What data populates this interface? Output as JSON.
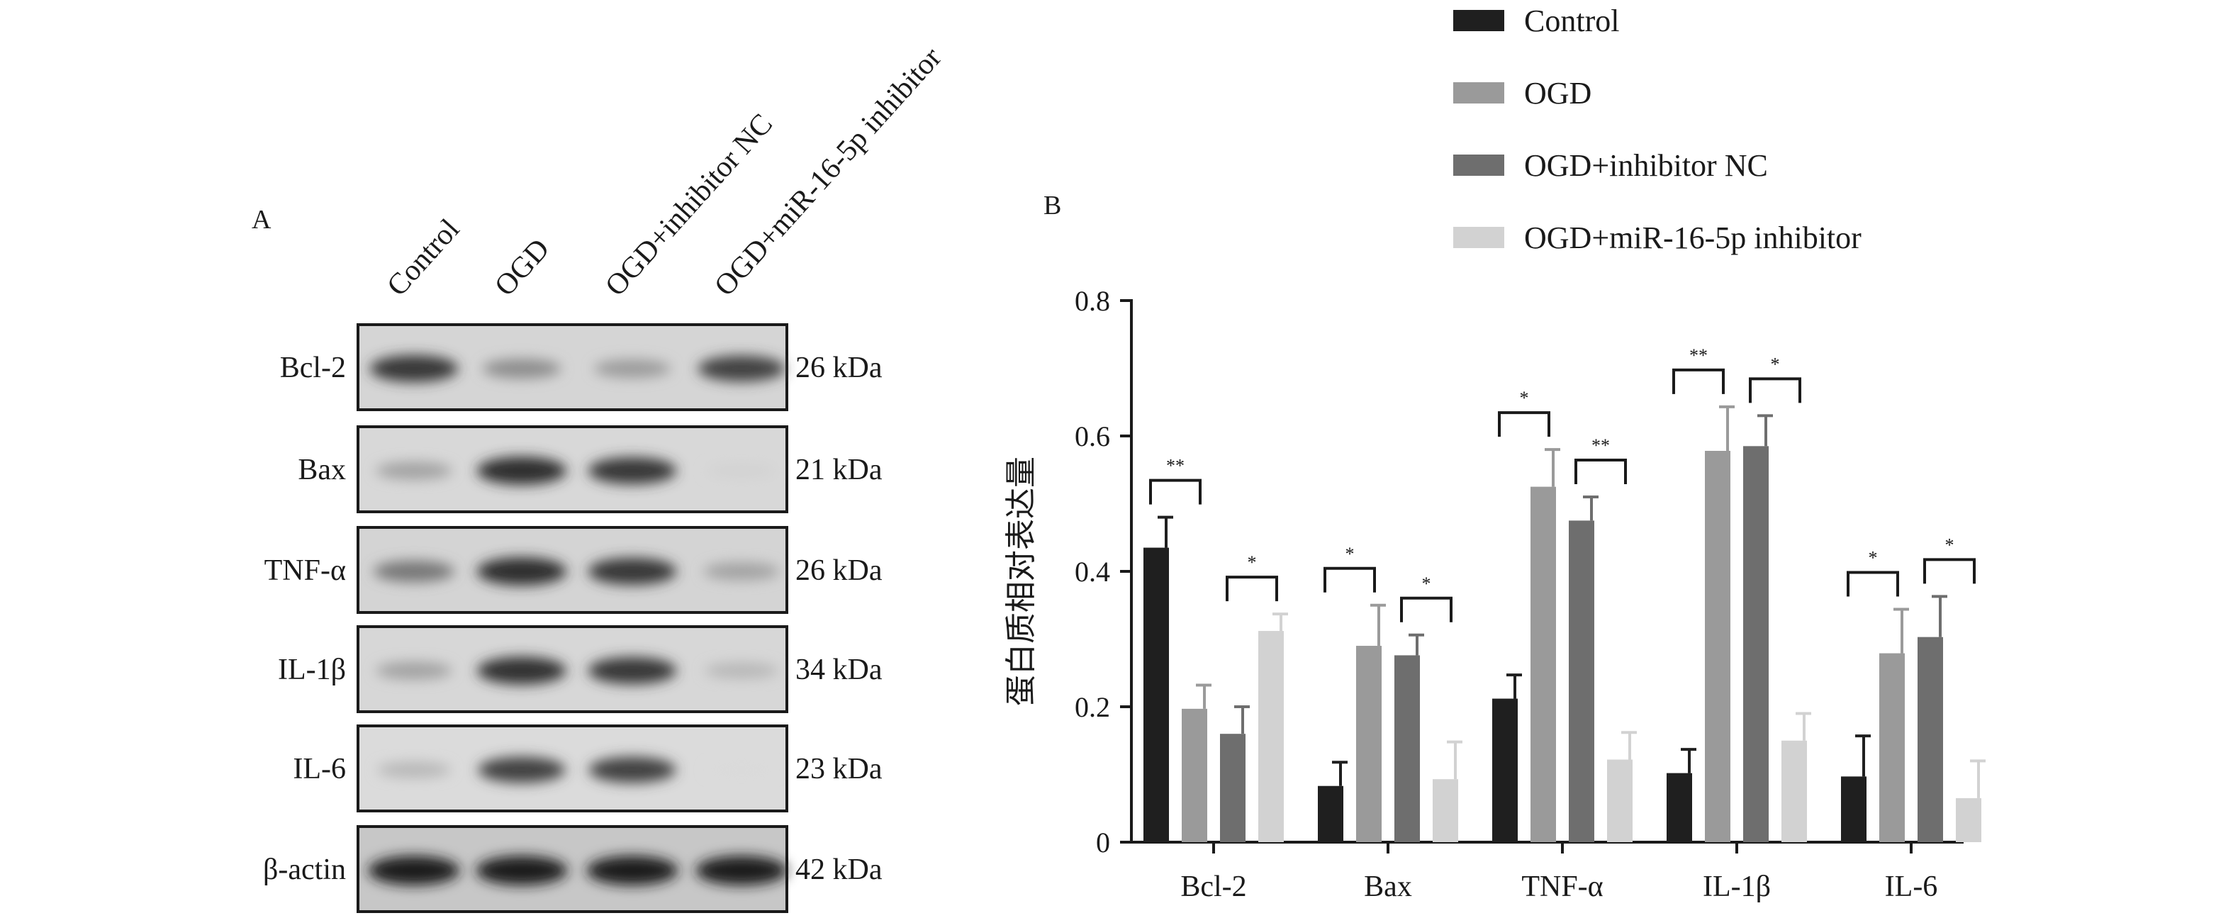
{
  "panels": {
    "a": "A",
    "b": "B"
  },
  "colors": {
    "control": "#1f1f1f",
    "ogd": "#9a9a9a",
    "inhibitor_nc": "#6e6e6e",
    "mir_inhibitor": "#d2d2d2"
  },
  "blot": {
    "lanes": [
      "Control",
      "OGD",
      "OGD+inhibitor NC",
      "OGD+miR-16-5p inhibitor"
    ],
    "rows": [
      {
        "name": "Bcl-2",
        "kda": "26 kDa",
        "intensity": [
          0.85,
          0.45,
          0.38,
          0.8
        ]
      },
      {
        "name": "Bax",
        "kda": "21 kDa",
        "intensity": [
          0.35,
          0.9,
          0.85,
          0.12
        ]
      },
      {
        "name": "TNF-α",
        "kda": "26 kDa",
        "intensity": [
          0.55,
          0.9,
          0.85,
          0.35
        ]
      },
      {
        "name": "IL-1β",
        "kda": "34 kDa",
        "intensity": [
          0.35,
          0.88,
          0.85,
          0.25
        ]
      },
      {
        "name": "IL-6",
        "kda": "23 kDa",
        "intensity": [
          0.25,
          0.8,
          0.8,
          0.08
        ]
      },
      {
        "name": "β-actin",
        "kda": "42 kDa",
        "intensity": [
          0.98,
          0.98,
          0.98,
          0.98
        ]
      }
    ]
  },
  "chart_data": {
    "type": "bar",
    "ylabel": "蛋白质相对表达量",
    "ylim": [
      0,
      0.8
    ],
    "yticks": [
      {
        "value": 0,
        "label": "0"
      },
      {
        "value": 0.2,
        "label": "0.2"
      },
      {
        "value": 0.4,
        "label": "0.4"
      },
      {
        "value": 0.6,
        "label": "0.6"
      },
      {
        "value": 0.8,
        "label": "0.8"
      }
    ],
    "categories": [
      "Bcl-2",
      "Bax",
      "TNF-α",
      "IL-1β",
      "IL-6"
    ],
    "legend_position": "top-right",
    "series": [
      {
        "name": "Control",
        "color": "#1f1f1f",
        "values": [
          0.435,
          0.083,
          0.212,
          0.102,
          0.097
        ],
        "errors": [
          0.045,
          0.035,
          0.035,
          0.035,
          0.06
        ]
      },
      {
        "name": "OGD",
        "color": "#9a9a9a",
        "values": [
          0.197,
          0.29,
          0.525,
          0.578,
          0.279
        ],
        "errors": [
          0.035,
          0.06,
          0.055,
          0.065,
          0.065
        ]
      },
      {
        "name": "OGD+inhibitor NC",
        "color": "#6e6e6e",
        "values": [
          0.16,
          0.276,
          0.475,
          0.585,
          0.303
        ],
        "errors": [
          0.04,
          0.03,
          0.035,
          0.045,
          0.06
        ]
      },
      {
        "name": "OGD+miR-16-5p inhibitor",
        "color": "#d2d2d2",
        "values": [
          0.312,
          0.093,
          0.122,
          0.15,
          0.065
        ],
        "errors": [
          0.025,
          0.055,
          0.04,
          0.04,
          0.055
        ]
      }
    ],
    "significance": [
      {
        "category": 0,
        "from": 0,
        "to": 1,
        "label": "**"
      },
      {
        "category": 0,
        "from": 2,
        "to": 3,
        "label": "*"
      },
      {
        "category": 1,
        "from": 0,
        "to": 1,
        "label": "*"
      },
      {
        "category": 1,
        "from": 2,
        "to": 3,
        "label": "*"
      },
      {
        "category": 2,
        "from": 0,
        "to": 1,
        "label": "*"
      },
      {
        "category": 2,
        "from": 2,
        "to": 3,
        "label": "**"
      },
      {
        "category": 3,
        "from": 0,
        "to": 1,
        "label": "**"
      },
      {
        "category": 3,
        "from": 2,
        "to": 3,
        "label": "*"
      },
      {
        "category": 4,
        "from": 0,
        "to": 1,
        "label": "*"
      },
      {
        "category": 4,
        "from": 2,
        "to": 3,
        "label": "*"
      }
    ]
  }
}
